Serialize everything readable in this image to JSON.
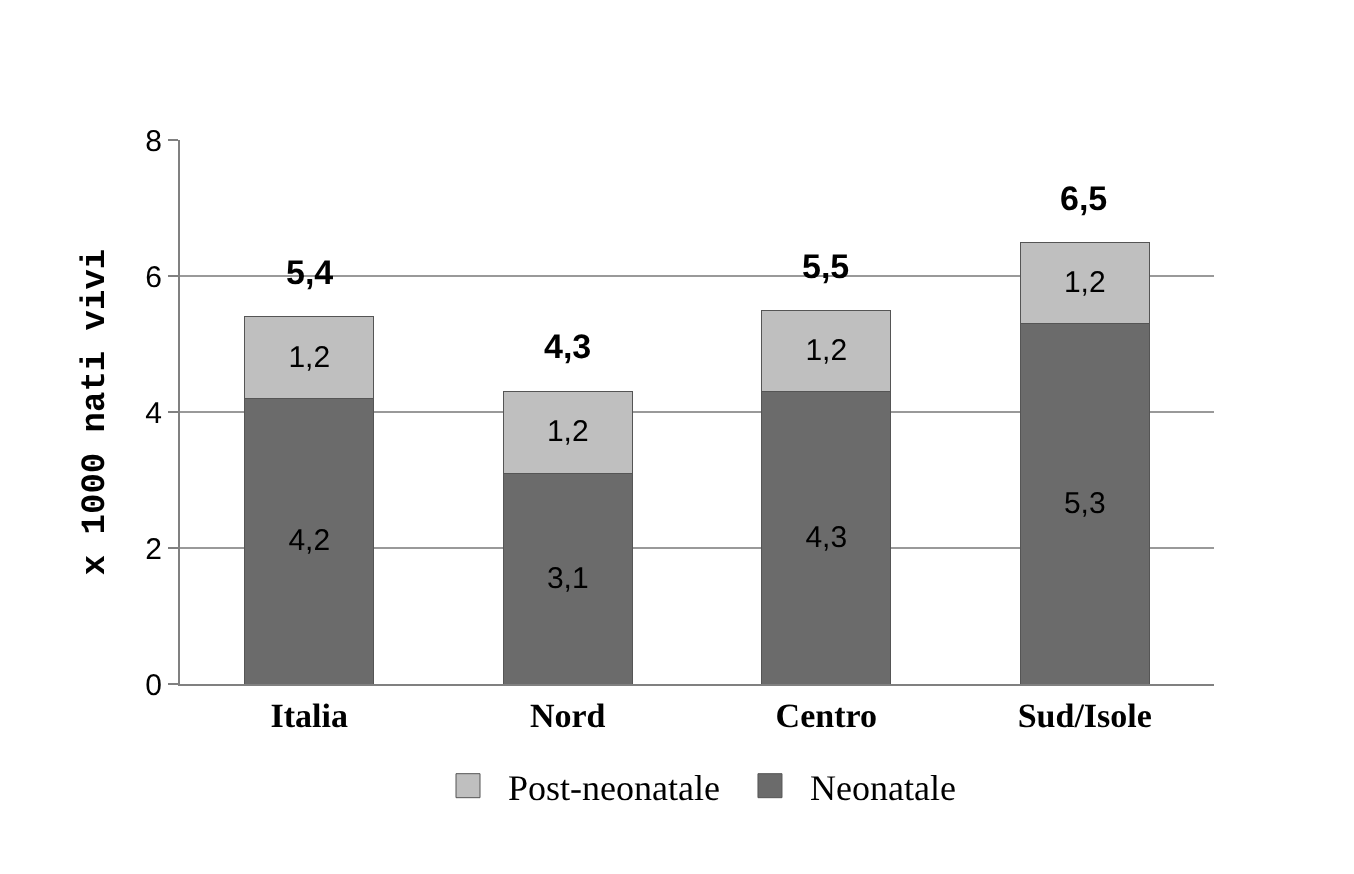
{
  "chart_data": {
    "type": "bar",
    "stacked": true,
    "ylabel": "x 1000 nati vivi",
    "categories": [
      "Italia",
      "Nord",
      "Centro",
      "Sud/Isole"
    ],
    "series": [
      {
        "name": "Neonatale",
        "color": "#6b6b6b",
        "values": [
          4.2,
          3.1,
          4.3,
          5.3
        ],
        "value_labels": [
          "4,2",
          "3,1",
          "4,3",
          "5,3"
        ]
      },
      {
        "name": "Post-neonatale",
        "color": "#bfbfbf",
        "values": [
          1.2,
          1.2,
          1.2,
          1.2
        ],
        "value_labels": [
          "1,2",
          "1,2",
          "1,2",
          "1,2"
        ]
      }
    ],
    "totals": [
      "5,4",
      "4,3",
      "5,5",
      "6,5"
    ],
    "ylim": [
      0,
      8
    ],
    "yticks": [
      0,
      2,
      4,
      6,
      8
    ],
    "grid": "y",
    "legend": "bottom"
  }
}
